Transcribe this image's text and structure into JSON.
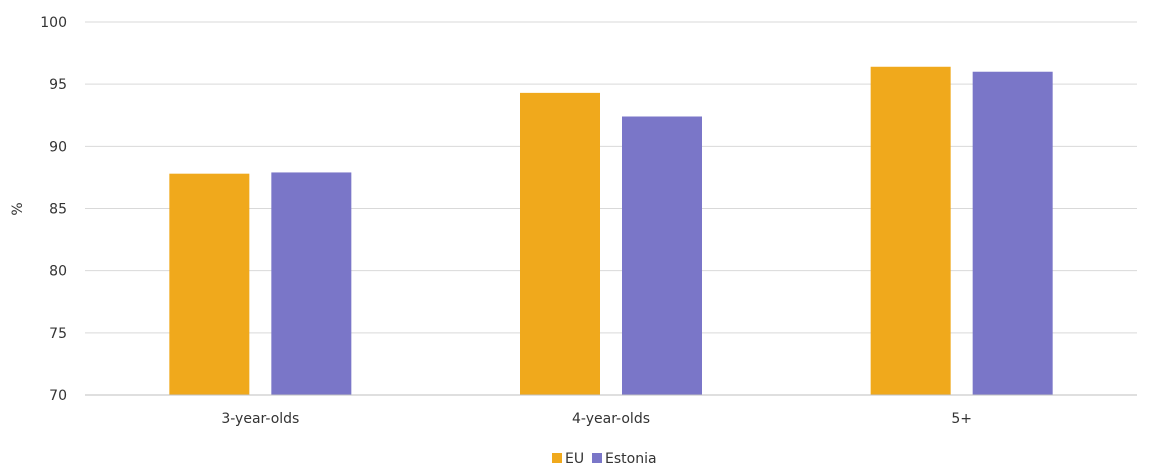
{
  "chart_data": {
    "type": "bar",
    "categories": [
      "3-year-olds",
      "4-year-olds",
      "5+"
    ],
    "series": [
      {
        "name": "EU",
        "color": "#f0a91c",
        "values": [
          87.8,
          94.3,
          96.4
        ]
      },
      {
        "name": "Estonia",
        "color": "#7a76c8",
        "values": [
          87.9,
          92.4,
          96.0
        ]
      }
    ],
    "ylabel": "%",
    "ylim": [
      70,
      100
    ],
    "yticks": [
      70,
      75,
      80,
      85,
      90,
      95,
      100
    ],
    "grid": true,
    "legend_position": "bottom-center"
  }
}
